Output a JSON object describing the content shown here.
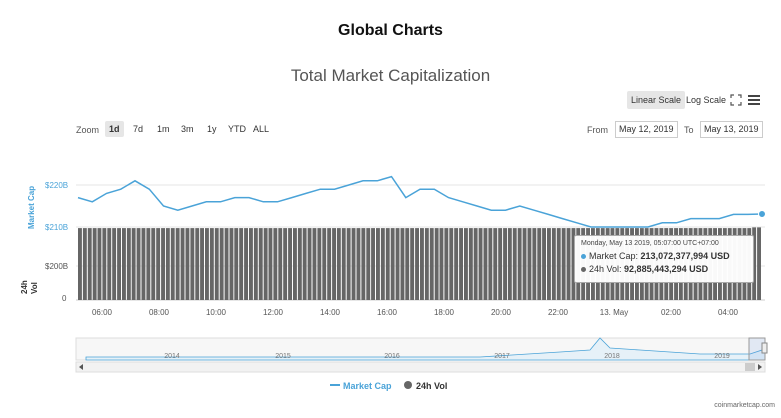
{
  "page": {
    "title": "Global Charts"
  },
  "chart_header": {
    "title": "Total Market Capitalization"
  },
  "toolbar": {
    "linear_label": "Linear Scale",
    "log_label": "Log Scale",
    "fullscreen_icon": "fullscreen-icon",
    "menu_icon": "hamburger-menu-icon"
  },
  "zoom": {
    "label": "Zoom",
    "buttons": [
      "1d",
      "7d",
      "1m",
      "3m",
      "1y",
      "YTD",
      "ALL"
    ],
    "active": "1d"
  },
  "range": {
    "from_label": "From",
    "from_value": "May 12, 2019",
    "to_label": "To",
    "to_value": "May 13, 2019"
  },
  "axes": {
    "mc_label": "Market Cap",
    "vol_label": "24h Vol",
    "mc_ticks": [
      "$220B",
      "$210B"
    ],
    "vol_ticks": [
      "$200B",
      "0"
    ],
    "x_ticks": [
      "06:00",
      "08:00",
      "10:00",
      "12:00",
      "14:00",
      "16:00",
      "18:00",
      "20:00",
      "22:00",
      "13. May",
      "02:00",
      "04:00"
    ],
    "nav_ticks": [
      "2014",
      "2015",
      "2016",
      "2017",
      "2018",
      "2019"
    ]
  },
  "tooltip": {
    "timestamp": "Monday, May 13 2019, 05:07:00 UTC+07:00",
    "mc_label": "Market Cap:",
    "mc_value": "213,072,377,994 USD",
    "vol_label": "24h Vol:",
    "vol_value": "92,885,443,294 USD"
  },
  "legend": {
    "mc": "Market Cap",
    "vol": "24h Vol"
  },
  "credit": "coinmarketcap.com",
  "colors": {
    "line": "#4aa3d8",
    "volume": "#666666",
    "navigator_fill": "#e6f1f8"
  },
  "chart_data": {
    "type": "line",
    "x": [
      "05:00",
      "05:30",
      "06:00",
      "06:30",
      "07:00",
      "07:30",
      "08:00",
      "08:30",
      "09:00",
      "09:30",
      "10:00",
      "10:30",
      "11:00",
      "11:30",
      "12:00",
      "12:30",
      "13:00",
      "13:30",
      "14:00",
      "14:30",
      "15:00",
      "15:30",
      "16:00",
      "16:30",
      "17:00",
      "17:30",
      "18:00",
      "18:30",
      "19:00",
      "19:30",
      "20:00",
      "20:30",
      "21:00",
      "21:30",
      "22:00",
      "22:30",
      "23:00",
      "23:30",
      "00:00",
      "00:30",
      "01:00",
      "01:30",
      "02:00",
      "02:30",
      "03:00",
      "03:30",
      "04:00",
      "04:30",
      "05:07"
    ],
    "series": [
      {
        "name": "Market Cap",
        "values": [
          217,
          216,
          218,
          219,
          221,
          219,
          215,
          214,
          215,
          216,
          216,
          217,
          217,
          216,
          216,
          217,
          218,
          219,
          219,
          220,
          221,
          221,
          222,
          217,
          219,
          219,
          217,
          216,
          215,
          214,
          214,
          215,
          214,
          213,
          212,
          211,
          210,
          210,
          210,
          210,
          210,
          211,
          211,
          212,
          212,
          212,
          213,
          213,
          213.1
        ]
      },
      {
        "name": "24h Vol",
        "values": [
          92,
          92,
          92,
          92,
          92,
          92,
          92,
          92,
          92,
          92,
          92,
          92,
          92,
          92,
          92,
          92,
          92,
          92,
          92,
          92,
          92,
          92,
          92,
          92,
          92,
          92,
          92,
          92,
          92,
          92,
          92,
          92,
          92,
          92,
          92,
          92,
          92,
          92,
          92,
          92,
          92,
          92,
          92,
          92,
          92,
          92,
          92,
          92,
          92.9
        ]
      }
    ],
    "mc_ylim": [
      206,
      223
    ],
    "vol_ylim": [
      0,
      200
    ],
    "legend": "bottom",
    "grid": true
  }
}
